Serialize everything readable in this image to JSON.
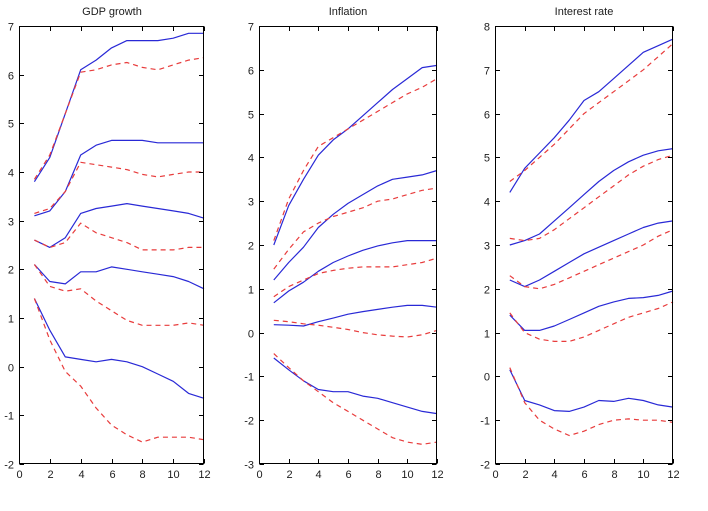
{
  "figure": {
    "background": "#ffffff",
    "axis_color": "#000000",
    "text_color": "#1c1c1c",
    "line_colors": {
      "solid": "#2929d6",
      "dashed": "#e83c3c"
    }
  },
  "chart_data": [
    {
      "type": "line",
      "title": "GDP growth",
      "x": [
        1,
        2,
        3,
        4,
        5,
        6,
        7,
        8,
        9,
        10,
        11,
        12
      ],
      "xlim": [
        0,
        12
      ],
      "ylim": [
        -2,
        7
      ],
      "xticks": [
        0,
        2,
        4,
        6,
        8,
        10,
        12
      ],
      "yticks": [
        -2,
        -1,
        0,
        1,
        2,
        3,
        4,
        5,
        6,
        7
      ],
      "grid": false,
      "legend": null,
      "series": [
        {
          "name": "band1-blue-solid",
          "style": "solid",
          "values": [
            3.8,
            4.3,
            5.2,
            6.1,
            6.3,
            6.55,
            6.7,
            6.7,
            6.7,
            6.75,
            6.85,
            6.85
          ]
        },
        {
          "name": "band1-red-dashed",
          "style": "dashed",
          "values": [
            3.85,
            4.35,
            5.2,
            6.05,
            6.1,
            6.2,
            6.25,
            6.15,
            6.1,
            6.2,
            6.3,
            6.35
          ]
        },
        {
          "name": "band2-blue-solid",
          "style": "solid",
          "values": [
            3.1,
            3.2,
            3.6,
            4.35,
            4.55,
            4.65,
            4.65,
            4.65,
            4.6,
            4.6,
            4.6,
            4.6
          ]
        },
        {
          "name": "band2-red-dashed",
          "style": "dashed",
          "values": [
            3.15,
            3.25,
            3.6,
            4.2,
            4.15,
            4.1,
            4.05,
            3.95,
            3.9,
            3.95,
            4.0,
            4.0
          ]
        },
        {
          "name": "band3-blue-solid",
          "style": "solid",
          "values": [
            2.6,
            2.45,
            2.65,
            3.15,
            3.25,
            3.3,
            3.35,
            3.3,
            3.25,
            3.2,
            3.15,
            3.05
          ]
        },
        {
          "name": "band3-red-dashed",
          "style": "dashed",
          "values": [
            2.6,
            2.45,
            2.55,
            2.95,
            2.75,
            2.65,
            2.55,
            2.4,
            2.4,
            2.4,
            2.45,
            2.45
          ]
        },
        {
          "name": "band4-blue-solid",
          "style": "solid",
          "values": [
            2.1,
            1.75,
            1.7,
            1.95,
            1.95,
            2.05,
            2.0,
            1.95,
            1.9,
            1.85,
            1.75,
            1.6
          ]
        },
        {
          "name": "band4-red-dashed",
          "style": "dashed",
          "values": [
            2.1,
            1.65,
            1.55,
            1.6,
            1.35,
            1.15,
            0.95,
            0.85,
            0.85,
            0.85,
            0.9,
            0.85
          ]
        },
        {
          "name": "band5-blue-solid",
          "style": "solid",
          "values": [
            1.4,
            0.75,
            0.2,
            0.15,
            0.1,
            0.15,
            0.1,
            0.0,
            -0.15,
            -0.3,
            -0.55,
            -0.65
          ]
        },
        {
          "name": "band5-red-dashed",
          "style": "dashed",
          "values": [
            1.4,
            0.55,
            -0.1,
            -0.4,
            -0.85,
            -1.2,
            -1.4,
            -1.55,
            -1.45,
            -1.45,
            -1.45,
            -1.5
          ]
        }
      ]
    },
    {
      "type": "line",
      "title": "Inflation",
      "x": [
        1,
        2,
        3,
        4,
        5,
        6,
        7,
        8,
        9,
        10,
        11,
        12
      ],
      "xlim": [
        0,
        12
      ],
      "ylim": [
        -3,
        7
      ],
      "xticks": [
        0,
        2,
        4,
        6,
        8,
        10,
        12
      ],
      "yticks": [
        -3,
        -2,
        -1,
        0,
        1,
        2,
        3,
        4,
        5,
        6,
        7
      ],
      "grid": false,
      "legend": null,
      "series": [
        {
          "name": "band1-blue-solid",
          "style": "solid",
          "values": [
            2.0,
            2.9,
            3.5,
            4.05,
            4.4,
            4.65,
            4.95,
            5.25,
            5.55,
            5.8,
            6.05,
            6.1
          ]
        },
        {
          "name": "band1-red-dashed",
          "style": "dashed",
          "values": [
            2.1,
            3.05,
            3.7,
            4.25,
            4.45,
            4.65,
            4.85,
            5.05,
            5.25,
            5.45,
            5.6,
            5.8
          ]
        },
        {
          "name": "band2-blue-solid",
          "style": "solid",
          "values": [
            1.2,
            1.6,
            1.95,
            2.4,
            2.7,
            2.95,
            3.15,
            3.35,
            3.5,
            3.55,
            3.6,
            3.7
          ]
        },
        {
          "name": "band2-red-dashed",
          "style": "dashed",
          "values": [
            1.45,
            1.9,
            2.3,
            2.5,
            2.65,
            2.75,
            2.85,
            3.0,
            3.05,
            3.15,
            3.25,
            3.3
          ]
        },
        {
          "name": "band3-blue-solid",
          "style": "solid",
          "values": [
            0.68,
            0.95,
            1.15,
            1.4,
            1.6,
            1.75,
            1.88,
            1.98,
            2.05,
            2.1,
            2.1,
            2.1
          ]
        },
        {
          "name": "band3-red-dashed",
          "style": "dashed",
          "values": [
            0.82,
            1.05,
            1.2,
            1.35,
            1.42,
            1.47,
            1.5,
            1.5,
            1.5,
            1.55,
            1.6,
            1.7
          ]
        },
        {
          "name": "band4-blue-solid",
          "style": "solid",
          "values": [
            0.18,
            0.17,
            0.15,
            0.25,
            0.33,
            0.42,
            0.48,
            0.53,
            0.58,
            0.62,
            0.62,
            0.58
          ]
        },
        {
          "name": "band4-red-dashed",
          "style": "dashed",
          "values": [
            0.28,
            0.25,
            0.2,
            0.17,
            0.12,
            0.07,
            0.0,
            -0.05,
            -0.08,
            -0.1,
            -0.05,
            0.05
          ]
        },
        {
          "name": "band5-blue-solid",
          "style": "solid",
          "values": [
            -0.58,
            -0.85,
            -1.1,
            -1.3,
            -1.35,
            -1.35,
            -1.45,
            -1.5,
            -1.6,
            -1.7,
            -1.8,
            -1.85
          ]
        },
        {
          "name": "band5-red-dashed",
          "style": "dashed",
          "values": [
            -0.48,
            -0.8,
            -1.1,
            -1.35,
            -1.6,
            -1.8,
            -2.0,
            -2.2,
            -2.4,
            -2.5,
            -2.55,
            -2.5
          ]
        }
      ]
    },
    {
      "type": "line",
      "title": "Interest rate",
      "x": [
        1,
        2,
        3,
        4,
        5,
        6,
        7,
        8,
        9,
        10,
        11,
        12
      ],
      "xlim": [
        0,
        12
      ],
      "ylim": [
        -2,
        8
      ],
      "xticks": [
        0,
        2,
        4,
        6,
        8,
        10,
        12
      ],
      "yticks": [
        -2,
        -1,
        0,
        1,
        2,
        3,
        4,
        5,
        6,
        7,
        8
      ],
      "grid": false,
      "legend": null,
      "series": [
        {
          "name": "band1-blue-solid",
          "style": "solid",
          "values": [
            4.2,
            4.75,
            5.1,
            5.45,
            5.85,
            6.3,
            6.5,
            6.8,
            7.1,
            7.4,
            7.55,
            7.7
          ]
        },
        {
          "name": "band1-red-dashed",
          "style": "dashed",
          "values": [
            4.45,
            4.7,
            5.0,
            5.3,
            5.65,
            6.0,
            6.25,
            6.5,
            6.75,
            7.0,
            7.3,
            7.6
          ]
        },
        {
          "name": "band2-blue-solid",
          "style": "solid",
          "values": [
            3.0,
            3.1,
            3.25,
            3.55,
            3.85,
            4.15,
            4.45,
            4.7,
            4.9,
            5.05,
            5.15,
            5.2
          ]
        },
        {
          "name": "band2-red-dashed",
          "style": "dashed",
          "values": [
            3.15,
            3.1,
            3.15,
            3.35,
            3.6,
            3.85,
            4.1,
            4.35,
            4.6,
            4.8,
            4.95,
            5.05
          ]
        },
        {
          "name": "band3-blue-solid",
          "style": "solid",
          "values": [
            2.2,
            2.05,
            2.2,
            2.4,
            2.6,
            2.8,
            2.95,
            3.1,
            3.25,
            3.4,
            3.5,
            3.55
          ]
        },
        {
          "name": "band3-red-dashed",
          "style": "dashed",
          "values": [
            2.3,
            2.05,
            2.0,
            2.1,
            2.25,
            2.4,
            2.55,
            2.7,
            2.85,
            3.0,
            3.2,
            3.35
          ]
        },
        {
          "name": "band4-blue-solid",
          "style": "solid",
          "values": [
            1.4,
            1.05,
            1.05,
            1.15,
            1.3,
            1.45,
            1.6,
            1.7,
            1.78,
            1.8,
            1.85,
            1.95
          ]
        },
        {
          "name": "band4-red-dashed",
          "style": "dashed",
          "values": [
            1.45,
            1.0,
            0.85,
            0.8,
            0.8,
            0.9,
            1.05,
            1.2,
            1.35,
            1.45,
            1.55,
            1.7
          ]
        },
        {
          "name": "band5-blue-solid",
          "style": "solid",
          "values": [
            0.15,
            -0.55,
            -0.65,
            -0.78,
            -0.8,
            -0.7,
            -0.55,
            -0.57,
            -0.5,
            -0.55,
            -0.65,
            -0.7
          ]
        },
        {
          "name": "band5-red-dashed",
          "style": "dashed",
          "values": [
            0.2,
            -0.6,
            -1.0,
            -1.2,
            -1.35,
            -1.25,
            -1.1,
            -1.0,
            -0.97,
            -1.0,
            -1.0,
            -1.05
          ]
        }
      ]
    }
  ]
}
